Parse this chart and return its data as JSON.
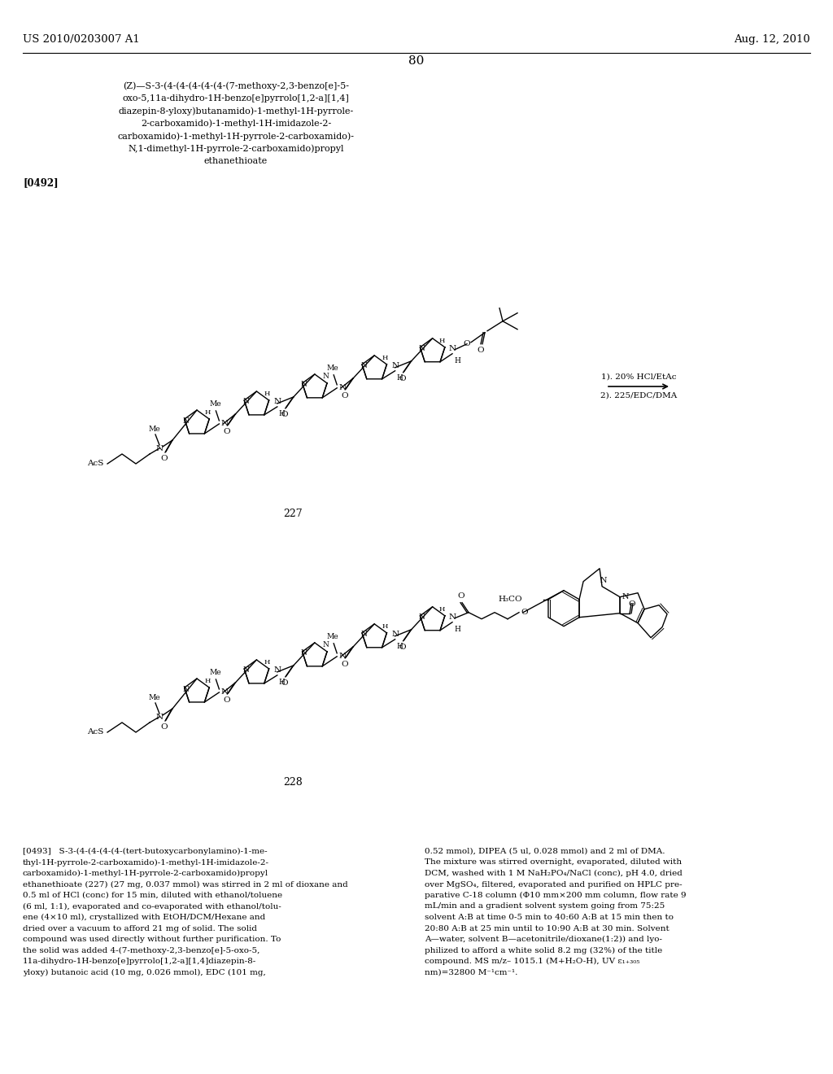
{
  "background_color": "#ffffff",
  "text_color": "#000000",
  "header_left": "US 2010/0203007 A1",
  "header_right": "Aug. 12, 2010",
  "page_number": "80"
}
